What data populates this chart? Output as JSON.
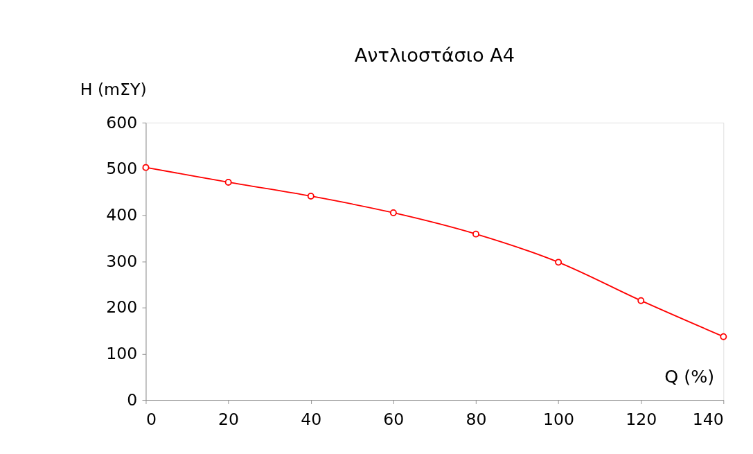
{
  "chart_data": {
    "type": "line",
    "title": "Αντλιοστάσιο Α4",
    "xlabel": "Q (%)",
    "ylabel": "H (mΣY)",
    "x": [
      0,
      20,
      40,
      60,
      80,
      100,
      120,
      140
    ],
    "series": [
      {
        "color": "#ff0000",
        "values": [
          503,
          471,
          441,
          405,
          359,
          298,
          215,
          137
        ]
      }
    ],
    "xlim": [
      0,
      140
    ],
    "xticks": [
      0,
      20,
      40,
      60,
      80,
      100,
      120,
      140
    ],
    "ylim": [
      0,
      600
    ],
    "yticks": [
      0,
      100,
      200,
      300,
      400,
      500,
      600
    ],
    "grid": false,
    "legend": false,
    "marker": "circle",
    "line_style": "solid"
  }
}
